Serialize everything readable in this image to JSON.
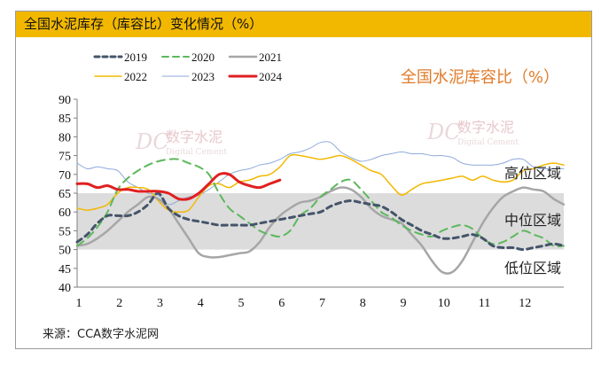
{
  "header": {
    "title": "全国水泥库存（库容比）变化情况（%）"
  },
  "footer": {
    "source": "来源：CCA数字水泥网"
  },
  "watermarks": [
    {
      "name": "watermark-left",
      "logo": "DC",
      "text": "数字水泥",
      "sub": "Digital Cement"
    },
    {
      "name": "watermark-right",
      "logo": "DC",
      "text": "数字水泥",
      "sub": "Digital Cement"
    }
  ],
  "chart_data": {
    "type": "line",
    "title": "全国水泥库容比（%）",
    "xlabel": "",
    "ylabel": "",
    "ylim": [
      40,
      90
    ],
    "yticks": [
      40,
      45,
      50,
      55,
      60,
      65,
      70,
      75,
      80,
      85,
      90
    ],
    "xlim": [
      1,
      13
    ],
    "xticks": [
      "1",
      "2",
      "3",
      "4",
      "5",
      "6",
      "7",
      "8",
      "9",
      "10",
      "11",
      "12"
    ],
    "grid": false,
    "legend": "top-left",
    "bands": [
      {
        "label": "高位区域",
        "range": [
          65,
          90
        ],
        "color": "#ffffff"
      },
      {
        "label": "中位区域",
        "range": [
          50,
          65
        ],
        "color": "#dcdcdc"
      },
      {
        "label": "低位区域",
        "range": [
          40,
          50
        ],
        "color": "#ffffff"
      }
    ],
    "series": [
      {
        "name": "2019",
        "color": "#44546a",
        "style": "dash",
        "width": 3,
        "x": [
          1,
          1.25,
          1.5,
          1.75,
          2,
          2.25,
          2.5,
          2.75,
          3,
          3.25,
          3.5,
          3.75,
          4,
          4.25,
          4.5,
          4.75,
          5,
          5.25,
          5.5,
          5.75,
          6,
          6.25,
          6.5,
          6.75,
          7,
          7.25,
          7.5,
          7.75,
          8,
          8.25,
          8.5,
          8.75,
          9,
          9.25,
          9.5,
          9.75,
          10,
          10.25,
          10.5,
          10.75,
          11,
          11.25,
          11.5,
          11.75,
          12,
          12.25,
          12.5,
          12.75,
          13
        ],
        "y": [
          52,
          54,
          57,
          59,
          59,
          59,
          60,
          62,
          65,
          61,
          59,
          58,
          57.5,
          57,
          56.5,
          56.5,
          56.5,
          56.5,
          57,
          57.5,
          58,
          58.5,
          59,
          59.5,
          60,
          61.5,
          62.5,
          63,
          62.5,
          62,
          61.5,
          60,
          58,
          56.5,
          55,
          54,
          53,
          53,
          53.5,
          54,
          53,
          51,
          50.5,
          50.5,
          50,
          50.5,
          51,
          51.5,
          51
        ]
      },
      {
        "name": "2020",
        "color": "#5cb85c",
        "style": "dash",
        "width": 2,
        "x": [
          1,
          1.25,
          1.5,
          1.75,
          2,
          2.25,
          2.5,
          2.75,
          3,
          3.25,
          3.5,
          3.75,
          4,
          4.25,
          4.5,
          4.75,
          5,
          5.25,
          5.5,
          5.75,
          6,
          6.25,
          6.5,
          6.75,
          7,
          7.25,
          7.5,
          7.75,
          8,
          8.25,
          8.5,
          8.75,
          9,
          9.25,
          9.5,
          9.75,
          10,
          10.25,
          10.5,
          10.75,
          11,
          11.25,
          11.5,
          11.75,
          12,
          12.25,
          12.5,
          12.75,
          13
        ],
        "y": [
          51,
          53,
          56,
          60,
          66,
          69,
          71,
          72.5,
          73.5,
          74,
          74,
          73,
          72,
          70,
          65,
          61,
          59,
          57,
          55,
          54,
          53.5,
          55,
          59,
          61,
          64,
          66,
          68,
          68.5,
          66,
          63,
          60,
          58.5,
          56.5,
          55,
          54,
          53.5,
          55,
          56,
          56.5,
          55.5,
          53,
          51.5,
          52,
          53.5,
          55,
          54,
          53,
          51,
          51
        ]
      },
      {
        "name": "2021",
        "color": "#a6a6a6",
        "style": "solid",
        "width": 2.5,
        "x": [
          1,
          1.25,
          1.5,
          1.75,
          2,
          2.25,
          2.5,
          2.75,
          3,
          3.25,
          3.5,
          3.75,
          4,
          4.25,
          4.5,
          4.75,
          5,
          5.25,
          5.5,
          5.75,
          6,
          6.25,
          6.5,
          6.75,
          7,
          7.25,
          7.5,
          7.75,
          8,
          8.25,
          8.5,
          8.75,
          9,
          9.25,
          9.5,
          9.75,
          10,
          10.25,
          10.5,
          10.75,
          11,
          11.25,
          11.5,
          11.75,
          12,
          12.25,
          12.5,
          12.75,
          13
        ],
        "y": [
          51,
          51.5,
          53,
          55,
          57.5,
          60,
          62,
          64,
          63.5,
          61,
          57,
          53,
          49,
          48,
          48,
          48.5,
          49,
          49.5,
          52,
          56,
          59,
          61,
          62.5,
          63,
          64,
          65.5,
          66.5,
          66,
          64,
          61,
          59,
          58,
          57,
          54,
          51,
          47,
          44,
          44,
          47,
          52,
          57,
          61,
          64,
          65.5,
          66.5,
          66,
          65.5,
          63.5,
          62
        ]
      },
      {
        "name": "2022",
        "color": "#f2b800",
        "style": "solid",
        "width": 1.5,
        "x": [
          1,
          1.25,
          1.5,
          1.75,
          2,
          2.25,
          2.5,
          2.75,
          3,
          3.25,
          3.5,
          3.75,
          4,
          4.25,
          4.5,
          4.75,
          5,
          5.25,
          5.5,
          5.75,
          6,
          6.25,
          6.5,
          6.75,
          7,
          7.25,
          7.5,
          7.75,
          8,
          8.25,
          8.5,
          8.75,
          9,
          9.25,
          9.5,
          9.75,
          10,
          10.25,
          10.5,
          10.75,
          11,
          11.25,
          11.5,
          11.75,
          12,
          12.25,
          12.5,
          12.75,
          13
        ],
        "y": [
          61,
          60.5,
          61,
          62,
          65,
          66.5,
          66.5,
          66,
          63,
          60.5,
          60,
          60.5,
          64,
          67,
          67.5,
          66.5,
          68,
          68.5,
          69.5,
          70,
          72,
          75,
          75,
          74.5,
          74,
          74.5,
          75,
          74,
          72.5,
          71,
          70,
          67,
          64.5,
          66,
          67.5,
          68,
          68.5,
          69,
          69.5,
          68.5,
          69.5,
          68.5,
          68,
          68.5,
          71,
          71.5,
          72.5,
          73,
          72.5
        ]
      },
      {
        "name": "2023",
        "color": "#8eaadb",
        "style": "solid",
        "width": 1,
        "x": [
          1,
          1.25,
          1.5,
          1.75,
          2,
          2.25,
          2.5,
          2.75,
          3,
          3.25,
          3.5,
          3.75,
          4,
          4.25,
          4.5,
          4.75,
          5,
          5.25,
          5.5,
          5.75,
          6,
          6.25,
          6.5,
          6.75,
          7,
          7.25,
          7.5,
          7.75,
          8,
          8.25,
          8.5,
          8.75,
          9,
          9.25,
          9.5,
          9.75,
          10,
          10.25,
          10.5,
          10.75,
          11,
          11.25,
          11.5,
          11.75,
          12,
          12.25,
          12.5,
          12.75,
          13
        ],
        "y": [
          73,
          71.5,
          72,
          71.5,
          71,
          68,
          66.5,
          65,
          64.5,
          62,
          63,
          64,
          64.5,
          66,
          68,
          70,
          71,
          71.5,
          72.5,
          73,
          74,
          75.5,
          76,
          77,
          78.5,
          78.5,
          76,
          74.5,
          73.5,
          74,
          75,
          75.5,
          76,
          75.5,
          75.5,
          75,
          75,
          74.5,
          73,
          72.5,
          72.5,
          72.5,
          73,
          74,
          74,
          72,
          71.5,
          71.5,
          71.5
        ]
      },
      {
        "name": "2024",
        "color": "#e02020",
        "style": "solid",
        "width": 3,
        "x": [
          1,
          1.25,
          1.5,
          1.75,
          2,
          2.25,
          2.5,
          2.75,
          3,
          3.25,
          3.5,
          3.75,
          4,
          4.25,
          4.5,
          4.75,
          5,
          5.25,
          5.5,
          5.75,
          6
        ],
        "y": [
          67.5,
          67.5,
          66.5,
          67,
          66,
          66,
          65.5,
          65.5,
          65.5,
          65,
          63.5,
          63.5,
          65,
          67.5,
          70,
          70,
          68,
          67,
          66.5,
          67.5,
          68.5
        ]
      }
    ]
  }
}
